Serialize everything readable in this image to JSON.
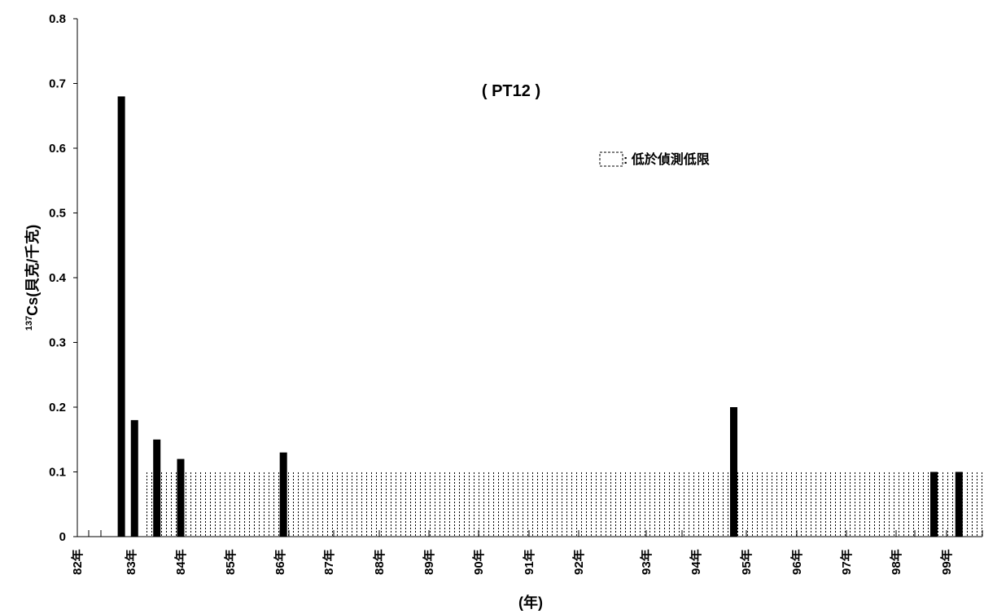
{
  "chart_data": {
    "type": "bar",
    "annotation_title": "( PT12 )",
    "legend_label": ": 低於偵測低限",
    "xlabel": "(年)",
    "ylabel_sup": "137",
    "ylabel_main": "Cs(貝克/千克)",
    "ylim": [
      0,
      0.8
    ],
    "y_ticks": [
      {
        "value": 0,
        "label": "0"
      },
      {
        "value": 0.1,
        "label": "0.1"
      },
      {
        "value": 0.2,
        "label": "0.2"
      },
      {
        "value": 0.3,
        "label": "0.3"
      },
      {
        "value": 0.4,
        "label": "0.4"
      },
      {
        "value": 0.5,
        "label": "0.5"
      },
      {
        "value": 0.6,
        "label": "0.6"
      },
      {
        "value": 0.7,
        "label": "0.7"
      },
      {
        "value": 0.8,
        "label": "0.8"
      }
    ],
    "x_range": [
      82,
      100.2
    ],
    "x_ticks": [
      {
        "value": 82,
        "label": "82年"
      },
      {
        "value": 83,
        "label": "83年"
      },
      {
        "value": 84,
        "label": "84年"
      },
      {
        "value": 85,
        "label": "85年"
      },
      {
        "value": 86,
        "label": "86年"
      },
      {
        "value": 87,
        "label": "87年"
      },
      {
        "value": 88,
        "label": "88年"
      },
      {
        "value": 89,
        "label": "89年"
      },
      {
        "value": 90,
        "label": "90年"
      },
      {
        "value": 91,
        "label": "91年"
      },
      {
        "value": 92,
        "label": "92年"
      },
      {
        "value": 93,
        "label": "93年"
      },
      {
        "value": 94,
        "label": "94年"
      },
      {
        "value": 95,
        "label": "95年"
      },
      {
        "value": 96,
        "label": "96年"
      },
      {
        "value": 97,
        "label": "97年"
      },
      {
        "value": 98,
        "label": "98年"
      },
      {
        "value": 99,
        "label": "99年"
      }
    ],
    "bars": [
      {
        "x": 82.82,
        "value": 0.68
      },
      {
        "x": 83.07,
        "value": 0.18
      },
      {
        "x": 83.52,
        "value": 0.15
      },
      {
        "x": 84.0,
        "value": 0.12
      },
      {
        "x": 86.07,
        "value": 0.13
      },
      {
        "x": 94.75,
        "value": 0.2
      },
      {
        "x": 98.75,
        "value": 0.1
      },
      {
        "x": 99.25,
        "value": 0.1
      }
    ],
    "detection_limit": {
      "value": 0.1,
      "x_start": 83.25,
      "x_end": 100.2
    }
  }
}
